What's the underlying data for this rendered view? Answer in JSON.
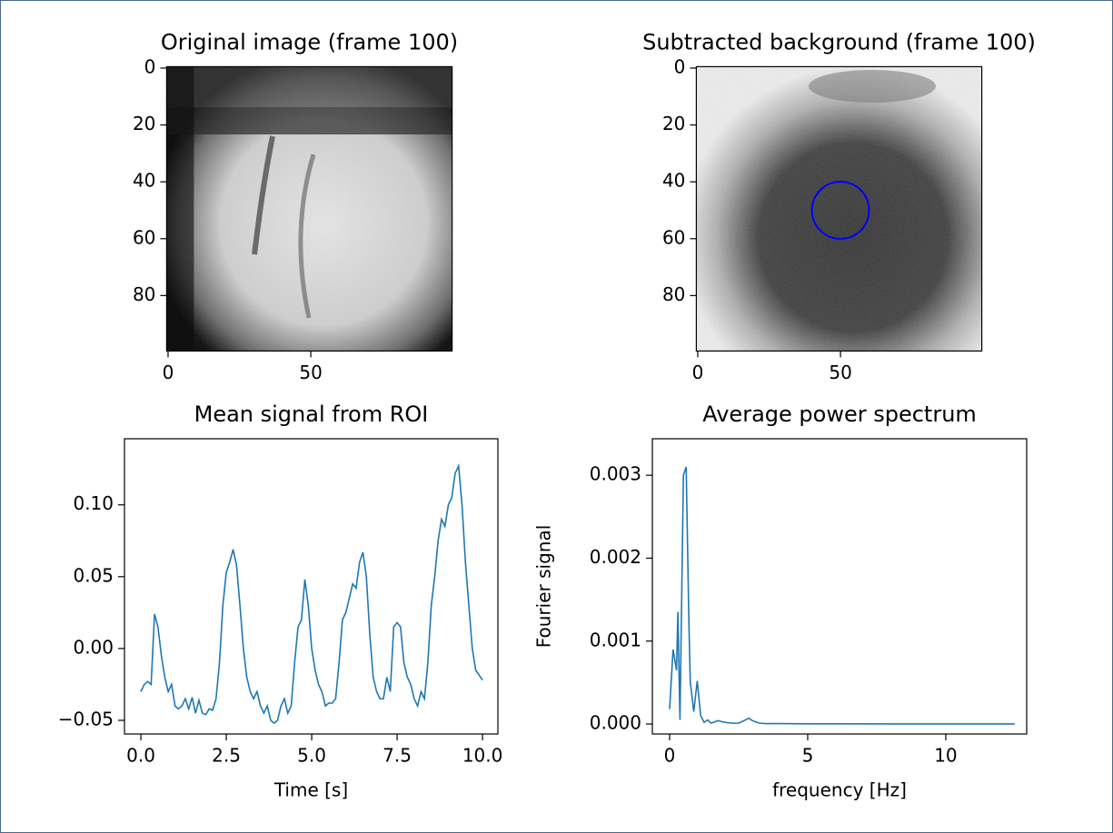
{
  "chart_data": [
    {
      "type": "image",
      "title": "Original image (frame 100)",
      "cmap": "gray",
      "xlim": [
        -0.5,
        99.5
      ],
      "ylim": [
        99.5,
        -0.5
      ],
      "xticks": [
        0,
        50
      ],
      "yticks": [
        0,
        20,
        40,
        60,
        80
      ]
    },
    {
      "type": "image",
      "title": "Subtracted background (frame 100)",
      "cmap": "gray_r",
      "xlim": [
        -0.5,
        99.5
      ],
      "ylim": [
        99.5,
        -0.5
      ],
      "xticks": [
        0,
        50
      ],
      "yticks": [
        0,
        20,
        40,
        60,
        80
      ],
      "circle": {
        "x": 50,
        "y": 50,
        "r": 10,
        "color": "#0000ff"
      }
    },
    {
      "type": "line",
      "title": "Mean signal from ROI",
      "xlabel": "Time [s]",
      "color": "#1f77b4",
      "xlim": [
        -0.48,
        10.45
      ],
      "ylim": [
        -0.0595,
        0.146
      ],
      "xticks": [
        {
          "value": 0,
          "label": "0.0"
        },
        2.5,
        {
          "value": 5,
          "label": "5.0"
        },
        7.5,
        {
          "value": 10,
          "label": "10.0"
        }
      ],
      "yticks": [
        {
          "value": -0.05,
          "label": "−0.05"
        },
        {
          "value": 0,
          "label": "0.00"
        },
        0.05,
        {
          "value": 0.1,
          "label": "0.10"
        }
      ],
      "x": [
        0,
        0.1,
        0.2,
        0.3,
        0.4,
        0.5,
        0.6,
        0.7,
        0.8,
        0.9,
        1,
        1.1,
        1.2,
        1.3,
        1.4,
        1.5,
        1.6,
        1.7,
        1.8,
        1.9,
        2,
        2.1,
        2.2,
        2.3,
        2.4,
        2.5,
        2.6,
        2.7,
        2.8,
        2.9,
        3,
        3.1,
        3.2,
        3.3,
        3.4,
        3.5,
        3.6,
        3.7,
        3.8,
        3.9,
        4,
        4.1,
        4.2,
        4.3,
        4.4,
        4.5,
        4.6,
        4.7,
        4.8,
        4.9,
        5,
        5.1,
        5.2,
        5.3,
        5.4,
        5.5,
        5.6,
        5.7,
        5.8,
        5.9,
        6,
        6.1,
        6.2,
        6.3,
        6.4,
        6.5,
        6.6,
        6.7,
        6.8,
        6.9,
        7,
        7.1,
        7.2,
        7.3,
        7.4,
        7.5,
        7.6,
        7.7,
        7.8,
        7.9,
        8,
        8.1,
        8.2,
        8.3,
        8.4,
        8.5,
        8.6,
        8.7,
        8.8,
        8.9,
        9,
        9.1,
        9.2,
        9.3,
        9.4,
        9.5,
        9.6,
        9.7,
        9.8,
        10
      ],
      "values": [
        -0.03,
        -0.025,
        -0.023,
        -0.025,
        0.024,
        0.015,
        -0.005,
        -0.02,
        -0.03,
        -0.025,
        -0.04,
        -0.042,
        -0.04,
        -0.035,
        -0.042,
        -0.034,
        -0.045,
        -0.036,
        -0.045,
        -0.046,
        -0.042,
        -0.043,
        -0.035,
        -0.01,
        0.03,
        0.053,
        0.06,
        0.069,
        0.058,
        0.03,
        0,
        -0.02,
        -0.03,
        -0.035,
        -0.03,
        -0.04,
        -0.045,
        -0.04,
        -0.05,
        -0.052,
        -0.05,
        -0.04,
        -0.035,
        -0.045,
        -0.04,
        -0.01,
        0.015,
        0.02,
        0.048,
        0.03,
        0,
        -0.015,
        -0.025,
        -0.03,
        -0.04,
        -0.038,
        -0.038,
        -0.035,
        -0.01,
        0.02,
        0.025,
        0.035,
        0.045,
        0.042,
        0.06,
        0.067,
        0.05,
        0.01,
        -0.02,
        -0.03,
        -0.035,
        -0.035,
        -0.02,
        -0.03,
        0.015,
        0.018,
        0.015,
        -0.01,
        -0.02,
        -0.025,
        -0.035,
        -0.04,
        -0.03,
        -0.035,
        -0.01,
        0.03,
        0.05,
        0.075,
        0.09,
        0.085,
        0.1,
        0.105,
        0.122,
        0.127,
        0.1,
        0.06,
        0.03,
        0,
        -0.015,
        -0.022
      ]
    },
    {
      "type": "line",
      "title": "Average power spectrum",
      "xlabel": "frequency [Hz]",
      "ylabel": "Fourier signal",
      "color": "#1f77b4",
      "xlim": [
        -0.625,
        12.93
      ],
      "ylim": [
        -0.00012,
        0.00344
      ],
      "xticks": [
        0,
        5,
        10
      ],
      "yticks": [
        {
          "value": 0,
          "label": "0.000"
        },
        0.001,
        0.002,
        0.003
      ],
      "x": [
        0,
        0.125,
        0.25,
        0.3,
        0.375,
        0.5,
        0.6,
        0.7,
        0.75,
        0.875,
        1,
        1.125,
        1.25,
        1.375,
        1.5,
        1.75,
        2,
        2.25,
        2.5,
        2.875,
        3,
        3.25,
        3.5,
        4,
        5,
        6,
        8,
        10,
        12.5
      ],
      "values": [
        0.00018,
        0.0009,
        0.00065,
        0.00135,
        5e-05,
        0.003,
        0.0031,
        0.0012,
        0.0005,
        0.00015,
        0.00052,
        0.0001,
        2e-05,
        5e-05,
        1e-05,
        4e-05,
        2e-05,
        1e-05,
        1e-05,
        7e-05,
        4e-05,
        1e-05,
        5e-06,
        5e-06,
        3e-06,
        2e-06,
        1e-06,
        1e-06,
        1e-06
      ]
    }
  ]
}
